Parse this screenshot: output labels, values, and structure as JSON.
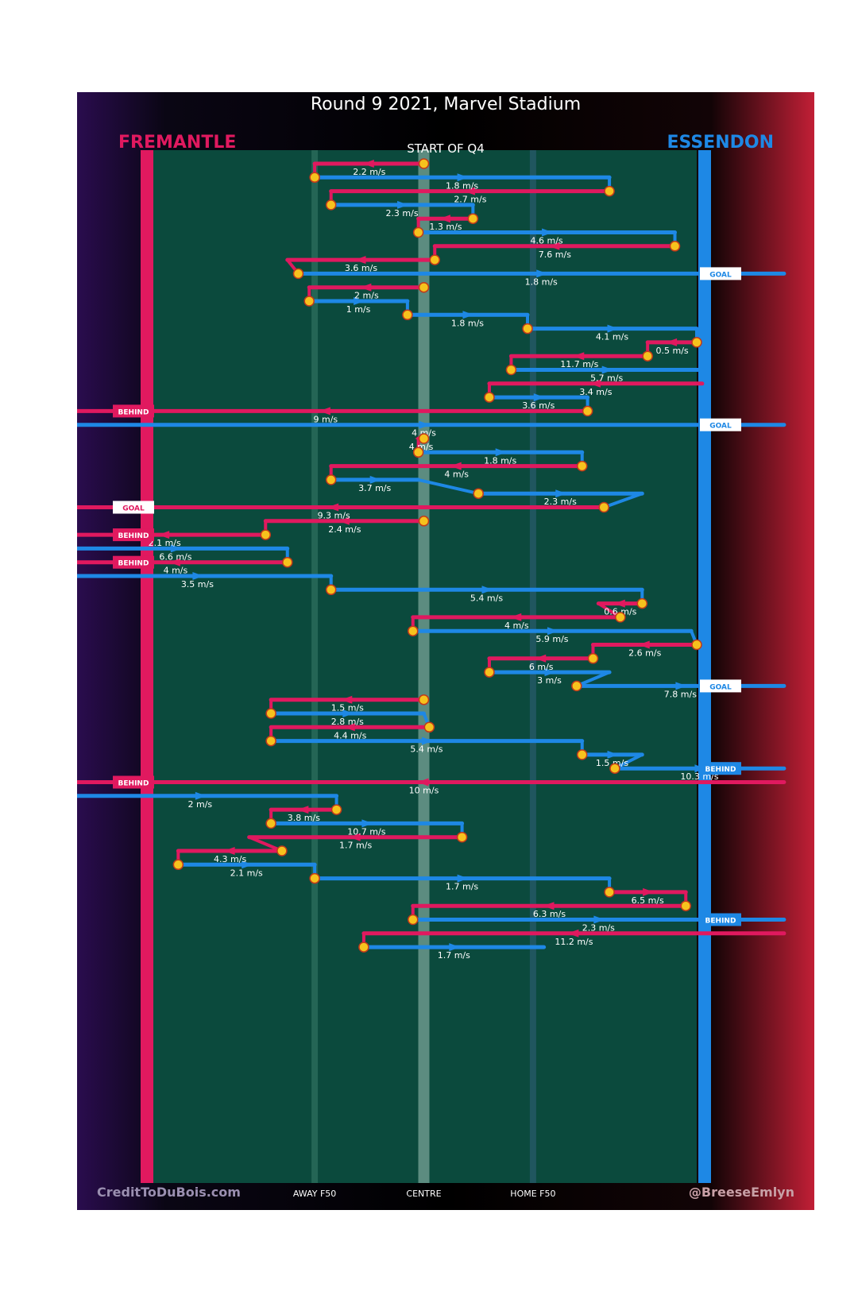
{
  "chart_data": {
    "type": "line",
    "title": "Round 9 2021, Marvel Stadium",
    "subtitle": "START OF Q4",
    "teams": {
      "left": {
        "name": "FREMANTLE",
        "color": "#e0195f"
      },
      "right": {
        "name": "ESSENDON",
        "color": "#1e88e5"
      }
    },
    "colors": {
      "field": "#0b4a3d",
      "ball_marker": "#f6c21d"
    },
    "xaxis": {
      "labels": [
        "AWAY F50",
        "CENTRE",
        "HOME F50"
      ],
      "range": [
        0,
        100
      ],
      "positions": [
        30,
        50,
        70
      ]
    },
    "credits": {
      "left": "CreditToDuBois.com",
      "right": "@BreeseEmlyn"
    },
    "chains": [
      {
        "team": "fre",
        "segments": [
          {
            "label": "2.2 m/s",
            "from": 50,
            "to": 30
          }
        ]
      },
      {
        "team": "ess",
        "segments": [
          {
            "label": "1.8 m/s",
            "from": 30,
            "to": 84
          }
        ]
      },
      {
        "team": "fre",
        "segments": [
          {
            "label": "2.7 m/s",
            "from": 84,
            "to": 33
          }
        ]
      },
      {
        "team": "ess",
        "segments": [
          {
            "label": "2.3 m/s",
            "from": 33,
            "to": 59
          }
        ]
      },
      {
        "team": "fre",
        "segments": [
          {
            "label": "1.3 m/s",
            "from": 59,
            "to": 49
          }
        ]
      },
      {
        "team": "ess",
        "segments": [
          {
            "label": "4.6 m/s",
            "from": 49,
            "to": 96
          }
        ]
      },
      {
        "team": "fre",
        "segments": [
          {
            "label": "7.6 m/s",
            "from": 96,
            "to": 52
          }
        ]
      },
      {
        "team": "fre",
        "segments": [
          {
            "label": "3.6 m/s",
            "from": 52,
            "to": 25
          }
        ]
      },
      {
        "team": "ess",
        "segments": [
          {
            "label": "1.8 m/s",
            "from": 27,
            "to": 116
          }
        ],
        "result": "GOAL"
      },
      {
        "team": "fre",
        "segments": [
          {
            "label": "2 m/s",
            "from": 50,
            "to": 29
          }
        ]
      },
      {
        "team": "ess",
        "segments": [
          {
            "label": "1 m/s",
            "from": 29,
            "to": 47
          }
        ]
      },
      {
        "team": "ess",
        "segments": [
          {
            "label": "1.8 m/s",
            "from": 47,
            "to": 69
          }
        ]
      },
      {
        "team": "ess",
        "segments": [
          {
            "label": "4.1 m/s",
            "from": 69,
            "to": 100
          }
        ]
      },
      {
        "team": "fre",
        "segments": [
          {
            "label": "0.5 m/s",
            "from": 100,
            "to": 91
          }
        ]
      },
      {
        "team": "fre",
        "segments": [
          {
            "label": "11.7 m/s",
            "from": 91,
            "to": 66
          }
        ]
      },
      {
        "team": "ess",
        "segments": [
          {
            "label": "5.7 m/s",
            "from": 66,
            "to": 101
          }
        ]
      },
      {
        "team": "fre",
        "segments": [
          {
            "label": "3.4 m/s",
            "from": 101,
            "to": 62
          }
        ]
      },
      {
        "team": "ess",
        "segments": [
          {
            "label": "3.6 m/s",
            "from": 62,
            "to": 80
          }
        ]
      },
      {
        "team": "fre",
        "segments": [
          {
            "label": "9 m/s",
            "from": 80,
            "to": -16
          }
        ],
        "result": "BEHIND"
      },
      {
        "team": "ess",
        "segments": [
          {
            "label": "4 m/s",
            "from": -16,
            "to": 116
          }
        ],
        "result": "GOAL"
      },
      {
        "team": "fre",
        "segments": [
          {
            "label": "4 m/s",
            "from": 50,
            "to": 49
          }
        ]
      },
      {
        "team": "ess",
        "segments": [
          {
            "label": "1.8 m/s",
            "from": 49,
            "to": 79
          }
        ]
      },
      {
        "team": "fre",
        "segments": [
          {
            "label": "4 m/s",
            "from": 79,
            "to": 33
          }
        ]
      },
      {
        "team": "ess",
        "segments": [
          {
            "label": "3.7 m/s",
            "from": 33,
            "to": 49
          }
        ]
      },
      {
        "team": "ess",
        "segments": [
          {
            "label": "2.3 m/s",
            "from": 60,
            "to": 90
          }
        ]
      },
      {
        "team": "fre",
        "segments": [
          {
            "label": "9.3 m/s",
            "from": 83,
            "to": -16
          }
        ],
        "result": "GOAL"
      },
      {
        "team": "fre",
        "segments": [
          {
            "label": "2.4 m/s",
            "from": 50,
            "to": 21
          }
        ]
      },
      {
        "team": "fre",
        "segments": [
          {
            "label": "2.1 m/s",
            "from": 21,
            "to": -16
          }
        ],
        "result": "BEHIND"
      },
      {
        "team": "ess",
        "segments": [
          {
            "label": "6.6 m/s",
            "from": -16,
            "to": 25
          }
        ]
      },
      {
        "team": "fre",
        "segments": [
          {
            "label": "4 m/s",
            "from": 25,
            "to": -16
          }
        ],
        "result": "BEHIND"
      },
      {
        "team": "ess",
        "segments": [
          {
            "label": "3.5 m/s",
            "from": -16,
            "to": 33
          }
        ]
      },
      {
        "team": "ess",
        "segments": [
          {
            "label": "5.4 m/s",
            "from": 33,
            "to": 90
          }
        ]
      },
      {
        "team": "fre",
        "segments": [
          {
            "label": "0.6 m/s",
            "from": 90,
            "to": 82
          }
        ]
      },
      {
        "team": "fre",
        "segments": [
          {
            "label": "4 m/s",
            "from": 86,
            "to": 48
          }
        ]
      },
      {
        "team": "ess",
        "segments": [
          {
            "label": "5.9 m/s",
            "from": 48,
            "to": 99
          }
        ]
      },
      {
        "team": "fre",
        "segments": [
          {
            "label": "2.6 m/s",
            "from": 100,
            "to": 81
          }
        ]
      },
      {
        "team": "fre",
        "segments": [
          {
            "label": "6 m/s",
            "from": 81,
            "to": 62
          }
        ]
      },
      {
        "team": "ess",
        "segments": [
          {
            "label": "3 m/s",
            "from": 62,
            "to": 84
          }
        ]
      },
      {
        "team": "ess",
        "segments": [
          {
            "label": "7.8 m/s",
            "from": 78,
            "to": 116
          }
        ],
        "result": "GOAL"
      },
      {
        "team": "fre",
        "segments": [
          {
            "label": "1.5 m/s",
            "from": 50,
            "to": 22
          }
        ]
      },
      {
        "team": "ess",
        "segments": [
          {
            "label": "2.8 m/s",
            "from": 22,
            "to": 50
          }
        ]
      },
      {
        "team": "fre",
        "segments": [
          {
            "label": "4.4 m/s",
            "from": 51,
            "to": 22
          }
        ]
      },
      {
        "team": "ess",
        "segments": [
          {
            "label": "5.4 m/s",
            "from": 22,
            "to": 79
          }
        ]
      },
      {
        "team": "ess",
        "segments": [
          {
            "label": "1.5 m/s",
            "from": 79,
            "to": 90
          }
        ]
      },
      {
        "team": "ess",
        "segments": [
          {
            "label": "10.3 m/s",
            "from": 85,
            "to": 116
          }
        ],
        "result": "BEHIND"
      },
      {
        "team": "fre",
        "segments": [
          {
            "label": "10 m/s",
            "from": 116,
            "to": -16
          }
        ],
        "result": "BEHIND"
      },
      {
        "team": "ess",
        "segments": [
          {
            "label": "2 m/s",
            "from": -16,
            "to": 34
          }
        ]
      },
      {
        "team": "fre",
        "segments": [
          {
            "label": "3.8 m/s",
            "from": 34,
            "to": 22
          }
        ]
      },
      {
        "team": "ess",
        "segments": [
          {
            "label": "10.7 m/s",
            "from": 22,
            "to": 57
          }
        ]
      },
      {
        "team": "fre",
        "segments": [
          {
            "label": "1.7 m/s",
            "from": 57,
            "to": 18
          }
        ]
      },
      {
        "team": "fre",
        "segments": [
          {
            "label": "4.3 m/s",
            "from": 24,
            "to": 5
          }
        ]
      },
      {
        "team": "ess",
        "segments": [
          {
            "label": "2.1 m/s",
            "from": 5,
            "to": 30
          }
        ]
      },
      {
        "team": "ess",
        "segments": [
          {
            "label": "1.7 m/s",
            "from": 30,
            "to": 84
          }
        ]
      },
      {
        "team": "fre",
        "segments": [
          {
            "label": "6.5 m/s",
            "from": 84,
            "to": 98
          }
        ]
      },
      {
        "team": "fre",
        "segments": [
          {
            "label": "6.3 m/s",
            "from": 98,
            "to": 48
          }
        ]
      },
      {
        "team": "ess",
        "segments": [
          {
            "label": "2.3 m/s",
            "from": 48,
            "to": 116
          }
        ],
        "result": "BEHIND"
      },
      {
        "team": "fre",
        "segments": [
          {
            "label": "11.2 m/s",
            "from": 116,
            "to": 39
          }
        ]
      },
      {
        "team": "ess",
        "segments": [
          {
            "label": "1.7 m/s",
            "from": 39,
            "to": 72
          }
        ]
      }
    ]
  }
}
